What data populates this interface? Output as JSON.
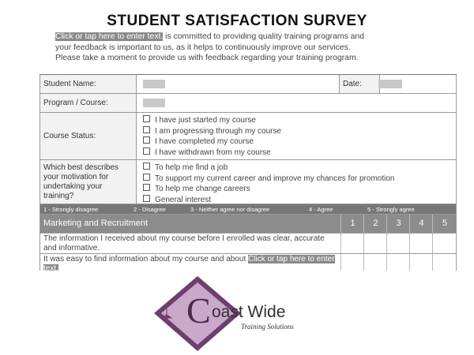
{
  "header": {
    "title": "STUDENT SATISFACTION SURVEY"
  },
  "intro": {
    "placeholder": "Click or tap here to enter text.",
    "lines": [
      " is committed to providing quality training programs and",
      "your feedback is important to us, as it helps to continuously improve our services.",
      "Please take a moment to provide us with feedback regarding your training program."
    ]
  },
  "form": {
    "student_name": "Student Name:",
    "date": "Date:",
    "program": "Program / Course:",
    "status": {
      "label": "Course Status:",
      "options": [
        "I have just started my course",
        "I am progressing through my course",
        "I have completed my course",
        "I have withdrawn from my course"
      ]
    },
    "motivation": {
      "label": "Which best describes your motivation for undertaking your training?",
      "options": [
        "To help me find a job",
        "To support my current career and improve my chances for promotion",
        "To help me change careers",
        "General interest"
      ]
    }
  },
  "scale": [
    "1 - Strongly disagree",
    "2 - Disagree",
    "3 - Neither agree nor disagree",
    "4 - Agree",
    "5 - Strongly agree"
  ],
  "section": {
    "title": "Marketing and Recruitment",
    "columns": [
      "1",
      "2",
      "3",
      "4",
      "5"
    ],
    "questions": [
      "The information I received about my course before I enrolled was clear, accurate and informative.",
      "It was easy to find information about my course and about "
    ],
    "question_placeholder": "Click or tap here to enter text."
  },
  "logo": {
    "initial": "C",
    "name": "oast Wide",
    "tagline": "Training Solutions"
  }
}
